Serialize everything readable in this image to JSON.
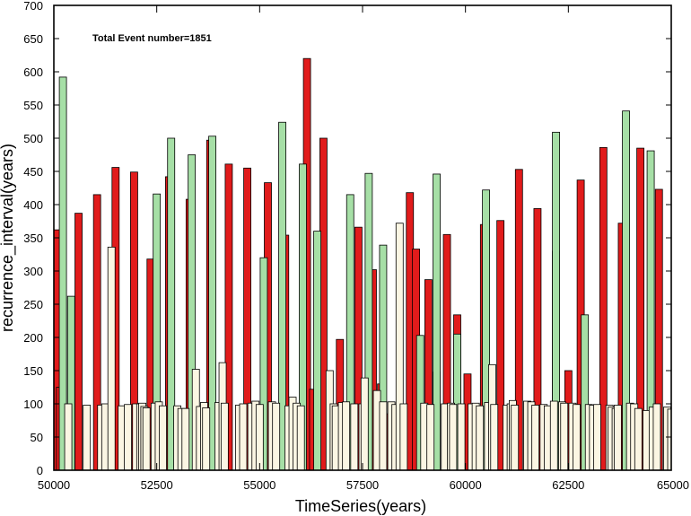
{
  "chart_data": {
    "type": "bar",
    "title": "",
    "annotation": "Total Event number=1851",
    "xlabel": "TimeSeries(years)",
    "ylabel": "recurrence_interval(years)",
    "xlim": [
      50000,
      65000
    ],
    "ylim": [
      0,
      700
    ],
    "xticks": [
      50000,
      52500,
      55000,
      57500,
      60000,
      62500,
      65000
    ],
    "xtick_labels": [
      "50000",
      "52500",
      "55000",
      "57500",
      "60000",
      "62500",
      "65000"
    ],
    "yticks": [
      0,
      50,
      100,
      150,
      200,
      250,
      300,
      350,
      400,
      450,
      500,
      550,
      600,
      650,
      700
    ],
    "ytick_labels": [
      "0",
      "50",
      "100",
      "150",
      "200",
      "250",
      "300",
      "350",
      "400",
      "450",
      "500",
      "550",
      "600",
      "650",
      "700"
    ],
    "grid": false,
    "legend": "none",
    "colors": {
      "red": "#e11b1b",
      "green": "#a6dfa6",
      "cream": "#fbf6e3",
      "edge": "#000000"
    },
    "series": [
      {
        "color": "red",
        "x": [
          50000,
          50150,
          50600,
          51050,
          51500,
          51950,
          52350,
          52800,
          53300,
          53800,
          54250,
          54700,
          55200,
          55620,
          56150,
          56300,
          56550,
          56950,
          57400,
          57750,
          57950,
          58100,
          58650,
          58800,
          59100,
          59300,
          59550,
          59800,
          60050,
          60450,
          60850,
          61300,
          61750,
          62200,
          62500,
          62800,
          63350,
          63800,
          64250,
          64700
        ],
        "values": [
          362,
          125,
          387,
          415,
          456,
          449,
          318,
          442,
          408,
          497,
          461,
          455,
          433,
          354,
          620,
          122,
          500,
          197,
          366,
          302,
          130,
          85,
          418,
          333,
          287,
          148,
          355,
          234,
          145,
          370,
          376,
          453,
          394,
          330,
          150,
          437,
          486,
          372,
          485,
          423
        ]
      },
      {
        "color": "green",
        "x": [
          50220,
          50420,
          52500,
          52850,
          53350,
          53850,
          55100,
          55550,
          56050,
          56400,
          57200,
          57650,
          58000,
          58900,
          59300,
          59800,
          60500,
          62200,
          62900,
          63900,
          64500
        ],
        "values": [
          592,
          262,
          416,
          500,
          475,
          503,
          320,
          524,
          461,
          360,
          415,
          447,
          339,
          203,
          446,
          205,
          422,
          509,
          234,
          541,
          481
        ]
      },
      {
        "color": "cream",
        "x": [
          50350,
          50800,
          51150,
          51250,
          51400,
          51650,
          51800,
          52000,
          52100,
          52150,
          52200,
          52250,
          52450,
          52550,
          52650,
          53000,
          53100,
          53200,
          53450,
          53550,
          53650,
          53700,
          54000,
          54100,
          54150,
          54500,
          54600,
          54800,
          54900,
          55000,
          55300,
          55400,
          55700,
          55800,
          55900,
          56000,
          56700,
          56800,
          56850,
          57000,
          57100,
          57300,
          57500,
          57550,
          57850,
          58000,
          58200,
          58300,
          58400,
          58500,
          59000,
          59150,
          59500,
          59650,
          59700,
          59900,
          60150,
          60250,
          60350,
          60550,
          60650,
          60700,
          61000,
          61100,
          61150,
          61200,
          61500,
          61600,
          61700,
          61900,
          62000,
          62150,
          62350,
          62400,
          62600,
          62700,
          63000,
          63100,
          63200,
          63500,
          63550,
          63650,
          63700,
          64000,
          64100,
          64200,
          64400,
          64550,
          64650,
          64900,
          65000
        ],
        "values": [
          100,
          98,
          98,
          100,
          336,
          97,
          99,
          100,
          100,
          101,
          96,
          94,
          101,
          103,
          97,
          97,
          93,
          93,
          152,
          96,
          102,
          94,
          102,
          162,
          101,
          98,
          100,
          101,
          104,
          99,
          103,
          101,
          97,
          110,
          101,
          97,
          150,
          100,
          97,
          102,
          103,
          100,
          100,
          139,
          120,
          103,
          103,
          99,
          372,
          100,
          101,
          99,
          100,
          101,
          99,
          100,
          100,
          101,
          97,
          102,
          159,
          99,
          98,
          100,
          105,
          98,
          104,
          103,
          98,
          99,
          97,
          104,
          103,
          101,
          101,
          99,
          99,
          98,
          99,
          98,
          95,
          93,
          98,
          101,
          100,
          93,
          90,
          95,
          100,
          95,
          92
        ]
      }
    ]
  }
}
